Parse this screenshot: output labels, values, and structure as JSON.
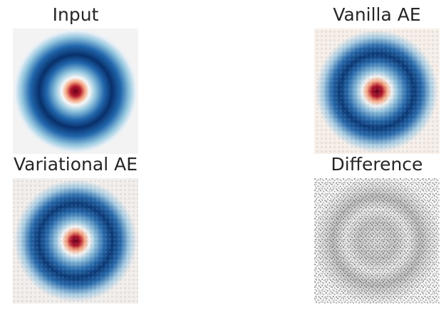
{
  "panels": [
    {
      "id": "input",
      "title": "Input"
    },
    {
      "id": "vanilla",
      "title": "Vanilla AE"
    },
    {
      "id": "variational",
      "title": "Variational AE"
    },
    {
      "id": "difference",
      "title": "Difference"
    }
  ],
  "colors": {
    "background": "#ffffff",
    "image_bg": "#f3f3f3",
    "dark_blue": "#08306b",
    "mid_blue": "#2b6fb0",
    "light_blue": "#9ec8e2",
    "white": "#f7f7f7",
    "red": "#b2182b",
    "dark_red": "#67001f",
    "diff_gray": "#6e6e6e"
  }
}
